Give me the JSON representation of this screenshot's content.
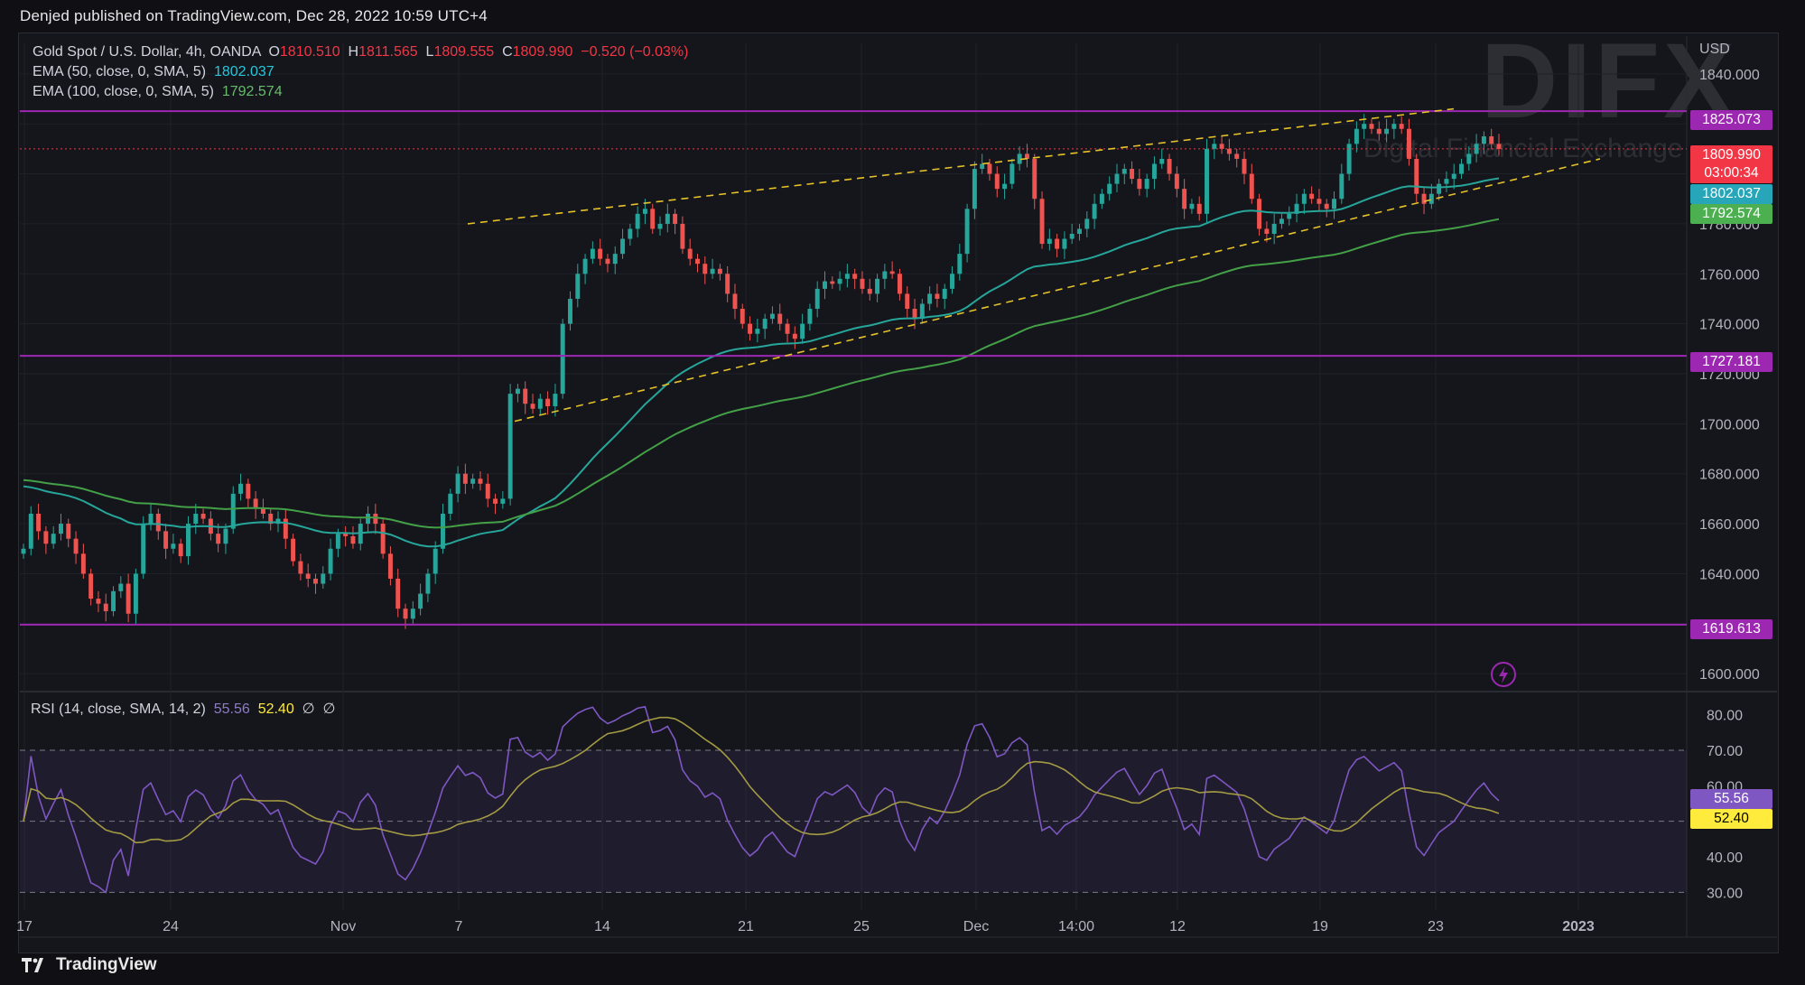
{
  "published": "Denjed published on TradingView.com, Dec 28, 2022 10:59 UTC+4",
  "legend": {
    "symbol": "Gold Spot / U.S. Dollar, 4h, OANDA",
    "o_label": "O",
    "o_value": "1810.510",
    "h_label": "H",
    "h_value": "1811.565",
    "l_label": "L",
    "l_value": "1809.555",
    "c_label": "C",
    "c_value": "1809.990",
    "change": "−0.520 (−0.03%)",
    "ema50_label": "EMA (50, close, 0, SMA, 5)",
    "ema50_value": "1802.037",
    "ema100_label": "EMA (100, close, 0, SMA, 5)",
    "ema100_value": "1792.574"
  },
  "rsi_legend": {
    "label": "RSI (14, close, SMA, 14, 2)",
    "value": "55.56",
    "ma_value": "52.40",
    "extra1": "∅",
    "extra2": "∅"
  },
  "watermark": {
    "brand": "DIFX",
    "subtitle": "Digital Financial Exchange"
  },
  "footer": {
    "brand": "TradingView"
  },
  "colors": {
    "up": "#26a69a",
    "down": "#ef5350",
    "ema50": "#26a69a",
    "ema100": "#43a047",
    "hline": "#9c27b0",
    "channel": "#e6c229",
    "rsi": "#7e57c2",
    "rsi_ma": "#a39a43"
  },
  "chart_data": {
    "type": "candlestick",
    "price_axis": {
      "currency": "USD",
      "ticks": [
        "1840.000",
        "1820.000",
        "1800.000",
        "1780.000",
        "1760.000",
        "1740.000",
        "1720.000",
        "1700.000",
        "1680.000",
        "1660.000",
        "1640.000",
        "1620.000",
        "1600.000"
      ],
      "range": [
        1595,
        1845
      ]
    },
    "time_axis": {
      "ticks": [
        "17",
        "24",
        "Nov",
        "7",
        "14",
        "21",
        "25",
        "Dec",
        "14:00",
        "12",
        "19",
        "23",
        "2023"
      ]
    },
    "horizontal_lines": [
      "1825.073",
      "1727.181",
      "1619.613"
    ],
    "current_price": {
      "value": "1809.990",
      "countdown": "03:00:34"
    },
    "ema50_last": "1802.037",
    "ema100_last": "1792.574",
    "channel_upper": [
      [
        "Oct 28",
        1780
      ],
      [
        "Dec 23",
        1826
      ]
    ],
    "channel_lower": [
      [
        "Nov 10",
        1701
      ],
      [
        "Dec 30",
        1806
      ]
    ],
    "candles_close": [
      1650,
      1664,
      1657,
      1652,
      1656,
      1660,
      1654,
      1648,
      1640,
      1630,
      1628,
      1625,
      1633,
      1636,
      1624,
      1640,
      1660,
      1664,
      1657,
      1650,
      1652,
      1647,
      1660,
      1664,
      1662,
      1656,
      1652,
      1658,
      1672,
      1676,
      1670,
      1666,
      1664,
      1660,
      1662,
      1654,
      1645,
      1640,
      1638,
      1636,
      1640,
      1650,
      1656,
      1655,
      1652,
      1660,
      1664,
      1660,
      1648,
      1638,
      1626,
      1622,
      1626,
      1632,
      1640,
      1650,
      1664,
      1672,
      1680,
      1676,
      1678,
      1676,
      1670,
      1668,
      1670,
      1712,
      1714,
      1708,
      1706,
      1710,
      1707,
      1712,
      1740,
      1750,
      1760,
      1766,
      1770,
      1766,
      1764,
      1768,
      1774,
      1778,
      1784,
      1786,
      1778,
      1780,
      1784,
      1780,
      1770,
      1766,
      1764,
      1760,
      1762,
      1760,
      1752,
      1746,
      1740,
      1736,
      1738,
      1742,
      1744,
      1740,
      1736,
      1734,
      1740,
      1746,
      1754,
      1757,
      1756,
      1758,
      1760,
      1758,
      1754,
      1752,
      1758,
      1761,
      1760,
      1752,
      1746,
      1742,
      1748,
      1752,
      1750,
      1754,
      1760,
      1768,
      1786,
      1802,
      1804,
      1800,
      1794,
      1796,
      1804,
      1808,
      1806,
      1790,
      1772,
      1774,
      1770,
      1774,
      1776,
      1778,
      1782,
      1788,
      1792,
      1796,
      1800,
      1802,
      1798,
      1794,
      1798,
      1804,
      1806,
      1800,
      1794,
      1786,
      1788,
      1784,
      1810,
      1812,
      1810,
      1808,
      1806,
      1800,
      1790,
      1778,
      1776,
      1780,
      1782,
      1784,
      1788,
      1792,
      1790,
      1788,
      1786,
      1790,
      1800,
      1812,
      1818,
      1820,
      1818,
      1816,
      1818,
      1820,
      1818,
      1806,
      1792,
      1788,
      1792,
      1796,
      1798,
      1800,
      1804,
      1808,
      1812,
      1815,
      1812,
      1810
    ]
  },
  "rsi_data": {
    "axis_ticks": [
      "80.00",
      "70.00",
      "60.00",
      "30.00"
    ],
    "right_tags": [
      "40.00"
    ],
    "range": [
      25,
      85
    ],
    "overbought": 70,
    "oversold": 30,
    "midline": 50
  }
}
